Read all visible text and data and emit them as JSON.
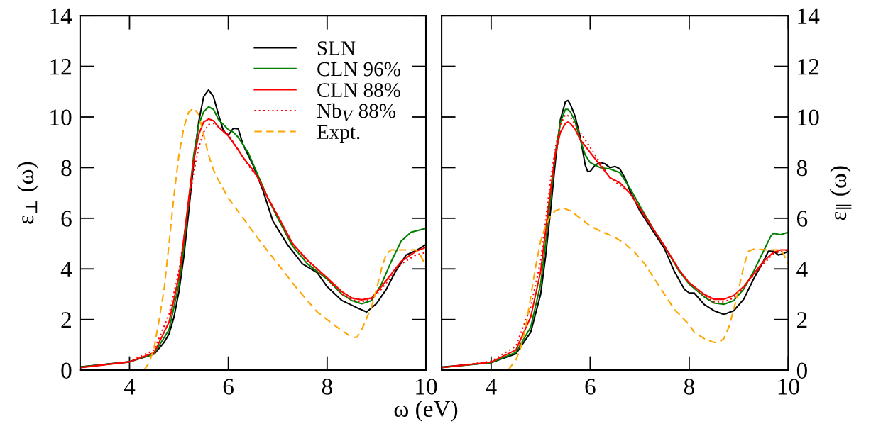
{
  "chart_data": [
    {
      "type": "line",
      "xlabel": "ω (eV)",
      "ylabel": "ε$_{⊥}$ (ω)",
      "xlim": [
        3,
        10
      ],
      "ylim": [
        0,
        14
      ],
      "xticks": [
        4,
        6,
        8,
        10
      ],
      "yticks": [
        0,
        2,
        4,
        6,
        8,
        10,
        12,
        14
      ],
      "grid": false,
      "legend": "top right",
      "marker": "none",
      "series": [
        {
          "name": "SLN",
          "color": "#000000",
          "line_style": "solid",
          "x": [
            3,
            4,
            4.5,
            4.7,
            4.8,
            4.9,
            5.0,
            5.1,
            5.2,
            5.3,
            5.4,
            5.5,
            5.6,
            5.7,
            5.8,
            5.9,
            6.0,
            6.1,
            6.2,
            6.3,
            6.5,
            6.7,
            6.9,
            7.2,
            7.5,
            7.8,
            8.0,
            8.3,
            8.6,
            8.8,
            9.0,
            9.2,
            9.4,
            9.6,
            9.8,
            10
          ],
          "values": [
            0.13,
            0.33,
            0.64,
            1.1,
            1.43,
            2.1,
            3.1,
            4.5,
            6.3,
            8.2,
            9.8,
            10.8,
            11.07,
            10.8,
            10.1,
            9.45,
            9.28,
            9.55,
            9.53,
            8.9,
            8.1,
            7.1,
            5.9,
            4.95,
            4.2,
            3.85,
            3.3,
            2.75,
            2.47,
            2.3,
            2.63,
            3.2,
            3.95,
            4.55,
            4.72,
            4.96
          ]
        },
        {
          "name": "CLN 96%",
          "color": "#008000",
          "line_style": "solid",
          "x": [
            3,
            4,
            4.5,
            4.8,
            5.0,
            5.1,
            5.2,
            5.3,
            5.4,
            5.5,
            5.6,
            5.7,
            5.8,
            6.0,
            6.1,
            6.2,
            6.4,
            6.6,
            6.8,
            7.0,
            7.3,
            7.6,
            8.0,
            8.3,
            8.5,
            8.7,
            8.9,
            9.1,
            9.3,
            9.5,
            9.7,
            10
          ],
          "values": [
            0.12,
            0.33,
            0.66,
            1.6,
            3.4,
            4.9,
            6.7,
            8.5,
            9.7,
            10.2,
            10.4,
            10.3,
            9.9,
            9.5,
            9.4,
            9.2,
            8.6,
            7.7,
            6.8,
            6.0,
            4.9,
            4.2,
            3.6,
            3.0,
            2.75,
            2.62,
            2.75,
            3.4,
            4.3,
            5.1,
            5.45,
            5.6
          ]
        },
        {
          "name": "CLN 88%",
          "color": "#ff0000",
          "line_style": "solid",
          "x": [
            3,
            4,
            4.5,
            4.8,
            5.0,
            5.1,
            5.2,
            5.3,
            5.4,
            5.5,
            5.6,
            5.7,
            5.8,
            6.0,
            6.2,
            6.3,
            6.5,
            6.6,
            6.8,
            7.0,
            7.3,
            7.6,
            8.0,
            8.3,
            8.5,
            8.7,
            8.9,
            9.1,
            9.3,
            9.5,
            9.8,
            10
          ],
          "values": [
            0.1,
            0.33,
            0.7,
            1.9,
            3.7,
            5.2,
            6.8,
            8.3,
            9.3,
            9.8,
            9.92,
            9.85,
            9.6,
            9.25,
            8.7,
            8.4,
            7.9,
            7.6,
            6.8,
            6.1,
            5.0,
            4.35,
            3.65,
            3.1,
            2.85,
            2.78,
            2.85,
            3.3,
            3.8,
            4.3,
            4.7,
            4.85
          ]
        },
        {
          "name": "Nb$_{V}$ 88%",
          "color": "#ff0000",
          "line_style": "dotted",
          "x": [
            3,
            4,
            4.5,
            4.8,
            5.0,
            5.1,
            5.2,
            5.3,
            5.4,
            5.5,
            5.6,
            5.7,
            5.8,
            6.0,
            6.2,
            6.4,
            6.6,
            6.8,
            7.0,
            7.3,
            7.6,
            8.0,
            8.3,
            8.5,
            8.7,
            8.9,
            9.1,
            9.3,
            9.5,
            9.8,
            10
          ],
          "values": [
            0.1,
            0.34,
            0.8,
            2.2,
            3.9,
            5.2,
            6.6,
            7.8,
            8.8,
            9.4,
            9.7,
            9.75,
            9.65,
            9.3,
            8.7,
            8.1,
            7.6,
            6.8,
            6.1,
            5.0,
            4.3,
            3.6,
            3.0,
            2.78,
            2.7,
            2.8,
            3.2,
            3.7,
            4.2,
            4.55,
            4.65
          ]
        },
        {
          "name": "Expt.",
          "color": "#ffa500",
          "line_style": "dashed",
          "x": [
            4.3,
            4.4,
            4.5,
            4.6,
            4.7,
            4.8,
            4.9,
            5.0,
            5.1,
            5.2,
            5.3,
            5.4,
            5.5,
            5.6,
            5.7,
            5.8,
            6.0,
            6.3,
            6.6,
            7.0,
            7.4,
            7.8,
            8.2,
            8.5,
            8.6,
            8.7,
            8.9,
            9.0,
            9.1,
            9.2,
            9.3,
            9.6,
            9.8,
            9.9,
            10
          ],
          "values": [
            0.02,
            0.3,
            0.9,
            2.0,
            3.2,
            5.0,
            6.9,
            8.5,
            9.6,
            10.2,
            10.35,
            10.1,
            9.3,
            8.5,
            7.9,
            7.5,
            6.8,
            6.0,
            5.2,
            4.2,
            3.2,
            2.3,
            1.7,
            1.3,
            1.3,
            1.6,
            2.5,
            3.2,
            4.0,
            4.6,
            4.75,
            4.75,
            4.75,
            4.5,
            4.1
          ]
        }
      ]
    },
    {
      "type": "line",
      "ylabel": "ε$_{∥}$ (ω)",
      "xlim": [
        3,
        10
      ],
      "ylim": [
        0,
        14
      ],
      "xticks": [
        4,
        6,
        8,
        10
      ],
      "yticks": [
        0,
        2,
        4,
        6,
        8,
        10,
        12,
        14
      ],
      "grid": false,
      "marker": "none",
      "series": [
        {
          "color": "#000000",
          "line_style": "solid",
          "x": [
            3,
            4,
            4.5,
            4.8,
            5.0,
            5.1,
            5.2,
            5.3,
            5.4,
            5.5,
            5.55,
            5.6,
            5.7,
            5.8,
            5.9,
            5.95,
            6.0,
            6.1,
            6.2,
            6.3,
            6.4,
            6.5,
            6.6,
            6.7,
            6.8,
            7.0,
            7.3,
            7.5,
            7.7,
            7.9,
            8.0,
            8.1,
            8.3,
            8.5,
            8.7,
            8.9,
            9.1,
            9.3,
            9.5,
            9.6,
            9.7,
            9.8,
            9.9,
            10
          ],
          "values": [
            0.12,
            0.3,
            0.65,
            1.5,
            3.0,
            4.5,
            6.3,
            8.3,
            9.9,
            10.6,
            10.65,
            10.5,
            10.0,
            9.2,
            8.1,
            7.85,
            7.85,
            8.1,
            8.2,
            8.15,
            8.0,
            8.05,
            7.95,
            7.6,
            7.1,
            6.3,
            5.4,
            4.8,
            3.9,
            3.2,
            3.05,
            3.05,
            2.6,
            2.35,
            2.2,
            2.35,
            2.8,
            3.6,
            4.3,
            4.7,
            4.7,
            4.55,
            4.6,
            4.7
          ]
        },
        {
          "color": "#008000",
          "line_style": "solid",
          "x": [
            3,
            4,
            4.5,
            4.8,
            5.0,
            5.1,
            5.2,
            5.3,
            5.4,
            5.5,
            5.55,
            5.6,
            5.7,
            5.8,
            5.9,
            6.0,
            6.2,
            6.4,
            6.6,
            6.8,
            7.0,
            7.3,
            7.5,
            7.8,
            8.0,
            8.3,
            8.5,
            8.7,
            8.9,
            9.1,
            9.3,
            9.5,
            9.65,
            9.7,
            9.85,
            10
          ],
          "values": [
            0.1,
            0.3,
            0.7,
            1.7,
            3.4,
            5.0,
            6.8,
            8.6,
            9.8,
            10.3,
            10.3,
            10.2,
            9.8,
            9.1,
            8.5,
            8.2,
            8.0,
            7.95,
            7.8,
            7.2,
            6.5,
            5.5,
            4.9,
            3.9,
            3.4,
            2.9,
            2.65,
            2.6,
            2.75,
            3.2,
            3.9,
            4.7,
            5.3,
            5.4,
            5.35,
            5.45
          ]
        },
        {
          "color": "#ff0000",
          "line_style": "solid",
          "x": [
            3,
            4,
            4.5,
            4.8,
            5.0,
            5.1,
            5.2,
            5.3,
            5.4,
            5.5,
            5.55,
            5.6,
            5.7,
            5.8,
            6.0,
            6.2,
            6.4,
            6.6,
            6.8,
            7.0,
            7.3,
            7.5,
            7.8,
            8.0,
            8.3,
            8.5,
            8.7,
            8.9,
            9.1,
            9.3,
            9.5,
            9.7,
            9.85,
            10
          ],
          "values": [
            0.1,
            0.32,
            0.8,
            2.1,
            3.9,
            5.5,
            7.1,
            8.6,
            9.4,
            9.75,
            9.8,
            9.75,
            9.5,
            9.1,
            8.6,
            8.1,
            7.6,
            7.4,
            7.0,
            6.4,
            5.5,
            4.9,
            3.95,
            3.45,
            3.0,
            2.8,
            2.8,
            2.95,
            3.3,
            3.8,
            4.3,
            4.65,
            4.75,
            4.75
          ]
        },
        {
          "color": "#ff0000",
          "line_style": "dotted",
          "x": [
            3,
            4,
            4.5,
            4.8,
            5.0,
            5.1,
            5.2,
            5.3,
            5.4,
            5.5,
            5.6,
            5.7,
            5.8,
            6.0,
            6.2,
            6.4,
            6.6,
            6.8,
            7.0,
            7.3,
            7.5,
            7.8,
            8.0,
            8.3,
            8.5,
            8.7,
            8.9,
            9.1,
            9.3,
            9.5,
            9.7,
            10
          ],
          "values": [
            0.1,
            0.35,
            0.95,
            2.5,
            4.3,
            5.9,
            7.5,
            8.8,
            9.7,
            10.1,
            10.0,
            9.7,
            9.4,
            8.8,
            8.2,
            7.6,
            7.3,
            7.0,
            6.4,
            5.5,
            4.9,
            3.95,
            3.45,
            2.95,
            2.7,
            2.7,
            2.85,
            3.25,
            3.75,
            4.2,
            4.6,
            4.75
          ]
        },
        {
          "color": "#ffa500",
          "line_style": "dashed",
          "x": [
            4.35,
            4.5,
            4.6,
            4.7,
            4.8,
            4.9,
            5.0,
            5.1,
            5.2,
            5.3,
            5.45,
            5.6,
            5.8,
            6.0,
            6.2,
            6.5,
            6.7,
            6.9,
            7.1,
            7.3,
            7.5,
            7.7,
            7.9,
            8.0,
            8.1,
            8.3,
            8.5,
            8.6,
            8.7,
            8.8,
            8.9,
            9.0,
            9.1,
            9.2,
            9.3,
            9.6,
            9.85,
            9.9,
            10
          ],
          "values": [
            0.02,
            0.4,
            0.9,
            1.7,
            2.9,
            4.1,
            5.1,
            5.7,
            6.1,
            6.3,
            6.4,
            6.3,
            6.0,
            5.7,
            5.5,
            5.25,
            5.0,
            4.65,
            4.2,
            3.6,
            3.0,
            2.4,
            2.0,
            1.8,
            1.5,
            1.25,
            1.1,
            1.1,
            1.25,
            1.7,
            2.4,
            3.2,
            4.1,
            4.7,
            4.78,
            4.75,
            4.75,
            4.6,
            4.2
          ]
        }
      ]
    }
  ]
}
